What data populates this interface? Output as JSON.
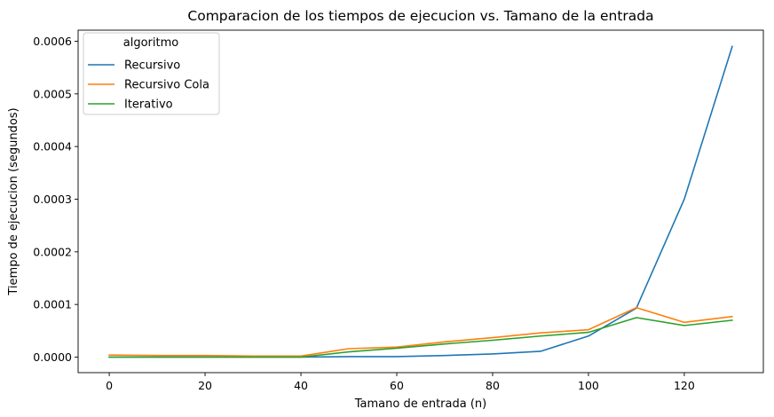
{
  "chart_data": {
    "type": "line",
    "title": "Comparacion de los tiempos de ejecucion vs. Tamano de la entrada",
    "xlabel": "Tamano de entrada (n)",
    "ylabel": "Tiempo de ejecucion (segundos)",
    "x": [
      0,
      10,
      20,
      30,
      40,
      50,
      60,
      70,
      80,
      90,
      100,
      110,
      120,
      130
    ],
    "xlim": [
      -6.5,
      136.5
    ],
    "ylim": [
      -2.95e-05,
      0.000621
    ],
    "xticks": [
      0,
      20,
      40,
      60,
      80,
      100,
      120
    ],
    "xtick_labels": [
      "0",
      "20",
      "40",
      "60",
      "80",
      "100",
      "120"
    ],
    "yticks": [
      0,
      0.0001,
      0.0002,
      0.0003,
      0.0004,
      0.0005,
      0.0006
    ],
    "ytick_labels": [
      "0.0000",
      "0.0001",
      "0.0002",
      "0.0003",
      "0.0004",
      "0.0005",
      "0.0006"
    ],
    "grid": false,
    "legend": {
      "title": "algoritmo",
      "position": "top-left"
    },
    "series": [
      {
        "name": "Recursivo",
        "color": "#1f77b4",
        "values": [
          0,
          0,
          0,
          0,
          0,
          1e-06,
          1e-06,
          3e-06,
          6e-06,
          1.1e-05,
          4e-05,
          9.3e-05,
          0.0003,
          0.00059
        ]
      },
      {
        "name": "Recursivo Cola",
        "color": "#ff7f0e",
        "values": [
          4e-06,
          3e-06,
          3e-06,
          2e-06,
          2e-06,
          1.6e-05,
          1.9e-05,
          2.9e-05,
          3.7e-05,
          4.6e-05,
          5.2e-05,
          9.4e-05,
          6.6e-05,
          7.7e-05
        ]
      },
      {
        "name": "Iterativo",
        "color": "#2ca02c",
        "values": [
          0,
          0,
          0,
          0,
          0,
          1e-05,
          1.7e-05,
          2.5e-05,
          3.2e-05,
          4e-05,
          4.7e-05,
          7.5e-05,
          6e-05,
          7e-05
        ]
      }
    ]
  }
}
